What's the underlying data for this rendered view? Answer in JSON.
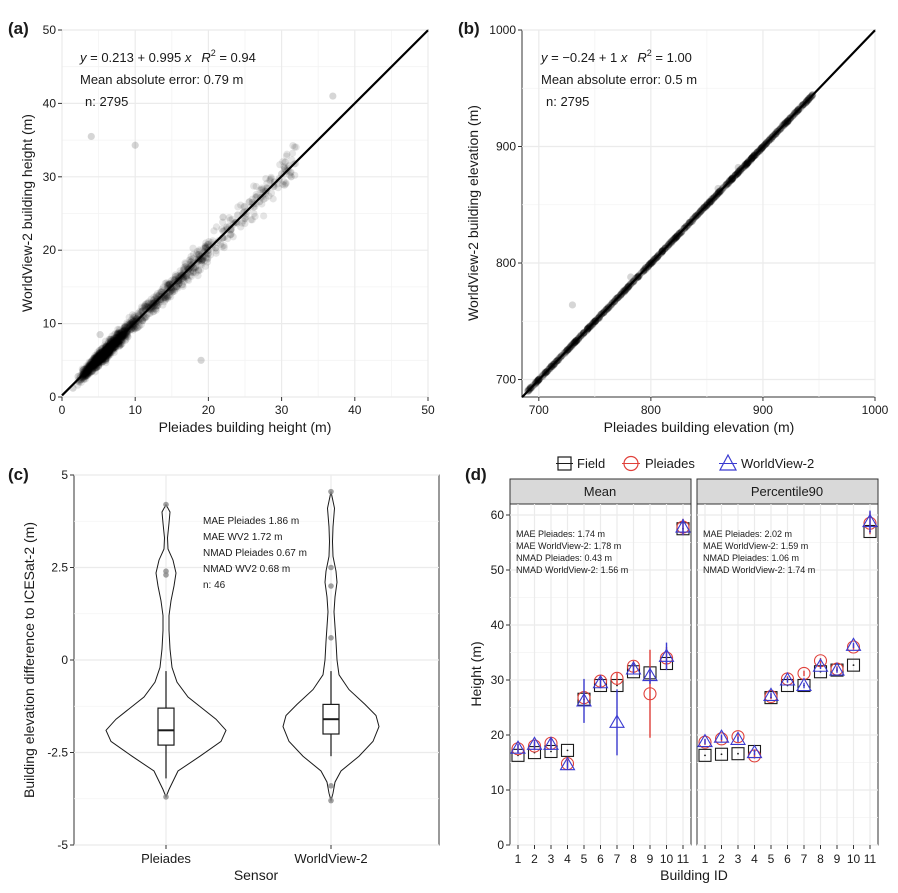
{
  "panels": {
    "a": {
      "panel_label": "(a)",
      "eq_y": "y",
      "eq_mid": " = 0.213 + 0.995 ",
      "eq_x": "x",
      "r2_r": "R",
      "r2_sup": "2",
      "r2_val": " = 0.94",
      "mae_text": "Mean absolute error:  0.79 m",
      "n_text": "n:  2795",
      "xlabel": "Pleiades building height (m)",
      "ylabel": "WorldView-2 building height (m)"
    },
    "b": {
      "panel_label": "(b)",
      "eq_y": "y",
      "eq_mid": " = −0.24 + 1 ",
      "eq_x": "x",
      "r2_r": "R",
      "r2_sup": "2",
      "r2_val": " = 1.00",
      "mae_text": "Mean absolute error:  0.5 m",
      "n_text": "n:  2795",
      "xlabel": "Pleiades building elevation (m)",
      "ylabel": "WorldView-2 building elevation (m)"
    },
    "c": {
      "panel_label": "(c)",
      "stats": [
        "MAE Pleiades  1.86 m",
        "MAE WV2  1.72 m",
        "NMAD Pleiades  0.67 m",
        "NMAD WV2  0.68 m",
        "n:  46"
      ],
      "xlabel": "Sensor",
      "ylabel": "Building elevation difference to ICESat-2 (m)"
    },
    "d": {
      "panel_label": "(d)",
      "facet_mean": "Mean",
      "facet_p90": "Percentile90",
      "stats_mean": [
        "MAE Pleiades: 1.74 m",
        "MAE WorldView-2: 1.78 m",
        "NMAD Pleiades: 0.43 m",
        "NMAD WorldView-2: 1.56 m"
      ],
      "stats_p90": [
        "MAE Pleiades: 2.02 m",
        "MAE WorldView-2: 1.59 m",
        "NMAD Pleiades: 1.06 m",
        "NMAD WorldView-2: 1.74 m"
      ],
      "legend": [
        "Field",
        "Pleiades",
        "WorldView-2"
      ],
      "xlabel": "Building ID",
      "ylabel": "Height (m)"
    }
  },
  "colors": {
    "field": "#1a1a1a",
    "pleiades": "#e0403a",
    "worldview": "#3a3ad0",
    "strip": "#d9d9d9",
    "grid": "#ebebeb"
  },
  "chart_data": [
    {
      "type": "scatter",
      "title": "(a)",
      "xlabel": "Pleiades building height (m)",
      "ylabel": "WorldView-2 building height (m)",
      "xlim": [
        0,
        50
      ],
      "ylim": [
        0,
        50
      ],
      "xticks": [
        0,
        10,
        20,
        30,
        40,
        50
      ],
      "yticks": [
        0,
        10,
        20,
        30,
        40,
        50
      ],
      "fit": {
        "intercept": 0.213,
        "slope": 0.995,
        "r2": 0.94
      },
      "mae": 0.79,
      "n": 2795,
      "sample_points": [
        [
          1.5,
          1.2
        ],
        [
          2.2,
          2.8
        ],
        [
          3.0,
          2.4
        ],
        [
          3.4,
          4.0
        ],
        [
          4.1,
          3.5
        ],
        [
          4.5,
          5.3
        ],
        [
          5.0,
          4.2
        ],
        [
          5.5,
          6.1
        ],
        [
          6.0,
          5.2
        ],
        [
          6.5,
          7.2
        ],
        [
          7.0,
          6.3
        ],
        [
          7.4,
          8.1
        ],
        [
          8.0,
          7.1
        ],
        [
          8.5,
          9.0
        ],
        [
          9.0,
          8.2
        ],
        [
          9.5,
          10.1
        ],
        [
          10.0,
          9.3
        ],
        [
          10.5,
          11.2
        ],
        [
          11.0,
          10.4
        ],
        [
          11.6,
          12.3
        ],
        [
          12.0,
          11.4
        ],
        [
          12.5,
          13.2
        ],
        [
          13.0,
          12.4
        ],
        [
          13.6,
          14.3
        ],
        [
          14.0,
          13.5
        ],
        [
          14.6,
          15.3
        ],
        [
          15.0,
          14.5
        ],
        [
          15.5,
          16.4
        ],
        [
          16.0,
          15.5
        ],
        [
          16.6,
          17.3
        ],
        [
          17.0,
          16.5
        ],
        [
          17.6,
          18.4
        ],
        [
          18.0,
          17.6
        ],
        [
          18.7,
          19.4
        ],
        [
          19.2,
          18.7
        ],
        [
          20.0,
          20.8
        ],
        [
          21.0,
          20.3
        ],
        [
          22.0,
          22.6
        ],
        [
          23.0,
          22.1
        ],
        [
          24.0,
          24.8
        ],
        [
          25.0,
          24.3
        ],
        [
          26.0,
          26.5
        ],
        [
          27.0,
          26.6
        ],
        [
          28.0,
          28.5
        ],
        [
          29.0,
          29.3
        ],
        [
          30.0,
          30.4
        ],
        [
          31.0,
          31.5
        ],
        [
          30.5,
          32.0
        ],
        [
          31.3,
          30.0
        ],
        [
          37.0,
          41.0
        ],
        [
          4.0,
          35.5
        ],
        [
          10.0,
          34.3
        ],
        [
          6.0,
          5.0
        ],
        [
          19.0,
          5.0
        ],
        [
          22.0,
          24.5
        ],
        [
          5.2,
          8.5
        ],
        [
          3.5,
          3.0
        ],
        [
          7.8,
          8.5
        ],
        [
          9.2,
          9.8
        ],
        [
          12.8,
          12.0
        ]
      ]
    },
    {
      "type": "scatter",
      "title": "(b)",
      "xlabel": "Pleiades building elevation (m)",
      "ylabel": "WorldView-2 building elevation (m)",
      "xlim": [
        685,
        1000
      ],
      "ylim": [
        685,
        1000
      ],
      "xticks": [
        700,
        800,
        900,
        1000
      ],
      "yticks": [
        700,
        800,
        900,
        1000
      ],
      "fit": {
        "intercept": -0.24,
        "slope": 1,
        "r2": 1.0
      },
      "mae": 0.5,
      "n": 2795,
      "sample_points": [
        [
          690,
          690
        ],
        [
          700,
          700
        ],
        [
          710,
          710
        ],
        [
          720,
          720
        ],
        [
          730,
          730
        ],
        [
          740,
          740
        ],
        [
          750,
          750
        ],
        [
          760,
          760
        ],
        [
          770,
          770
        ],
        [
          780,
          780
        ],
        [
          790,
          790
        ],
        [
          800,
          800
        ],
        [
          810,
          810
        ],
        [
          820,
          820
        ],
        [
          830,
          830
        ],
        [
          840,
          840
        ],
        [
          850,
          850
        ],
        [
          860,
          860
        ],
        [
          870,
          870
        ],
        [
          880,
          880
        ],
        [
          890,
          890
        ],
        [
          900,
          900
        ],
        [
          910,
          910
        ],
        [
          920,
          920
        ],
        [
          930,
          930
        ],
        [
          942,
          942
        ],
        [
          730,
          764
        ],
        [
          782,
          788
        ],
        [
          860,
          864
        ],
        [
          878,
          882
        ]
      ]
    },
    {
      "type": "violin",
      "title": "(c)",
      "xlabel": "Sensor",
      "ylabel": "Building elevation difference to ICESat-2 (m)",
      "ylim": [
        -5,
        5
      ],
      "yticks": [
        -5,
        -2.5,
        0,
        2.5,
        5
      ],
      "categories": [
        "Pleiades",
        "WorldView-2"
      ],
      "series": [
        {
          "name": "Pleiades",
          "min": -3.7,
          "q1": -2.3,
          "median": -1.9,
          "q3": -1.3,
          "max": 4.2,
          "whisker_low": -3.2,
          "whisker_high": -0.3,
          "outliers": [
            2.3,
            2.4,
            4.2,
            -3.7
          ]
        },
        {
          "name": "WorldView-2",
          "min": -3.8,
          "q1": -2.0,
          "median": -1.6,
          "q3": -1.2,
          "max": 4.55,
          "whisker_low": -2.6,
          "whisker_high": -0.3,
          "outliers": [
            0.6,
            2.0,
            2.5,
            4.55,
            -3.4,
            -3.8
          ]
        }
      ],
      "mae": {
        "Pleiades": 1.86,
        "WV2": 1.72
      },
      "nmad": {
        "Pleiades": 0.67,
        "WV2": 0.68
      },
      "n": 46
    },
    {
      "type": "scatter",
      "title": "(d)",
      "xlabel": "Building ID",
      "ylabel": "Height (m)",
      "ylim": [
        0,
        62
      ],
      "yticks": [
        0,
        10,
        20,
        30,
        40,
        50,
        60
      ],
      "categories": [
        1,
        2,
        3,
        4,
        5,
        6,
        7,
        8,
        9,
        10,
        11
      ],
      "facets": [
        {
          "name": "Mean",
          "series": [
            {
              "name": "Field",
              "values": [
                16.3,
                16.8,
                17.0,
                17.2,
                26.5,
                29.0,
                29.0,
                31.5,
                31.3,
                33.0,
                57.5
              ]
            },
            {
              "name": "Pleiades",
              "values": [
                17.5,
                18.0,
                18.5,
                14.8,
                26.8,
                29.8,
                30.3,
                32.5,
                27.5,
                34.0,
                57.8
              ],
              "err": [
                0.8,
                0.8,
                1.0,
                0.8,
                1.0,
                1.0,
                1.0,
                1.0,
                8.0,
                2.0,
                1.5
              ]
            },
            {
              "name": "WorldView-2",
              "values": [
                17.6,
                18.3,
                18.3,
                14.6,
                26.2,
                29.5,
                22.3,
                32.0,
                30.8,
                34.3,
                57.8
              ],
              "err": [
                0.8,
                0.8,
                1.0,
                0.8,
                4.0,
                1.0,
                6.0,
                1.0,
                1.5,
                2.5,
                1.5
              ]
            }
          ],
          "stats": {
            "mae_pleiades": 1.74,
            "mae_worldview2": 1.78,
            "nmad_pleiades": 0.43,
            "nmad_worldview2": 1.56
          }
        },
        {
          "name": "Percentile90",
          "series": [
            {
              "name": "Field",
              "values": [
                16.3,
                16.5,
                16.6,
                17.0,
                26.8,
                29.0,
                29.0,
                31.5,
                31.8,
                32.7,
                57.0
              ]
            },
            {
              "name": "Pleiades",
              "values": [
                18.7,
                19.3,
                19.7,
                16.2,
                27.0,
                30.2,
                31.2,
                33.5,
                32.0,
                36.0,
                58.5
              ],
              "err": [
                0.5,
                0.5,
                0.5,
                0.5,
                0.5,
                0.5,
                0.5,
                0.5,
                0.5,
                0.5,
                2.0
              ]
            },
            {
              "name": "WorldView-2",
              "values": [
                18.8,
                19.6,
                19.2,
                16.8,
                27.2,
                30.0,
                29.0,
                32.5,
                31.8,
                36.3,
                58.8
              ],
              "err": [
                0.5,
                0.5,
                0.5,
                0.5,
                0.5,
                0.5,
                0.5,
                0.5,
                0.5,
                0.5,
                2.0
              ]
            }
          ],
          "stats": {
            "mae_pleiades": 2.02,
            "mae_worldview2": 1.59,
            "nmad_pleiades": 1.06,
            "nmad_worldview2": 1.74
          }
        }
      ]
    }
  ]
}
